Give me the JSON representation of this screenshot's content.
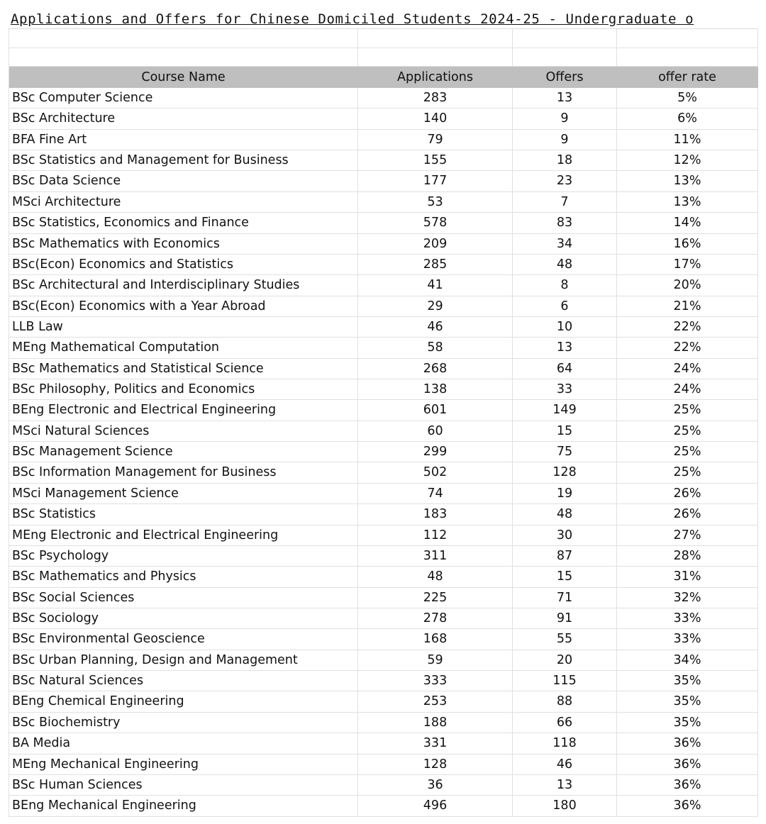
{
  "title": "Applications and Offers for Chinese Domiciled Students 2024-25 - Undergraduate o",
  "columns": [
    "Course Name",
    "Applications",
    "Offers",
    "offer rate"
  ],
  "rows": [
    [
      "BSc Computer Science",
      "283",
      "13",
      "5%"
    ],
    [
      "BSc Architecture",
      "140",
      "9",
      "6%"
    ],
    [
      "BFA Fine Art",
      "79",
      "9",
      "11%"
    ],
    [
      "BSc Statistics and Management for Business",
      "155",
      "18",
      "12%"
    ],
    [
      "BSc Data Science",
      "177",
      "23",
      "13%"
    ],
    [
      "MSci Architecture",
      "53",
      "7",
      "13%"
    ],
    [
      "BSc Statistics, Economics and Finance",
      "578",
      "83",
      "14%"
    ],
    [
      "BSc Mathematics with Economics",
      "209",
      "34",
      "16%"
    ],
    [
      "BSc(Econ) Economics and Statistics",
      "285",
      "48",
      "17%"
    ],
    [
      "BSc Architectural and Interdisciplinary Studies",
      "41",
      "8",
      "20%"
    ],
    [
      "BSc(Econ) Economics with a Year Abroad",
      "29",
      "6",
      "21%"
    ],
    [
      "LLB Law",
      "46",
      "10",
      "22%"
    ],
    [
      "MEng Mathematical Computation",
      "58",
      "13",
      "22%"
    ],
    [
      "BSc Mathematics and Statistical Science",
      "268",
      "64",
      "24%"
    ],
    [
      "BSc Philosophy, Politics and Economics",
      "138",
      "33",
      "24%"
    ],
    [
      "BEng Electronic and Electrical Engineering",
      "601",
      "149",
      "25%"
    ],
    [
      "MSci Natural Sciences",
      "60",
      "15",
      "25%"
    ],
    [
      "BSc Management Science",
      "299",
      "75",
      "25%"
    ],
    [
      "BSc Information Management for Business",
      "502",
      "128",
      "25%"
    ],
    [
      "MSci Management Science",
      "74",
      "19",
      "26%"
    ],
    [
      "BSc Statistics",
      "183",
      "48",
      "26%"
    ],
    [
      "MEng Electronic and Electrical Engineering",
      "112",
      "30",
      "27%"
    ],
    [
      "BSc Psychology",
      "311",
      "87",
      "28%"
    ],
    [
      "BSc Mathematics and Physics",
      "48",
      "15",
      "31%"
    ],
    [
      "BSc Social Sciences",
      "225",
      "71",
      "32%"
    ],
    [
      "BSc Sociology",
      "278",
      "91",
      "33%"
    ],
    [
      "BSc Environmental Geoscience",
      "168",
      "55",
      "33%"
    ],
    [
      "BSc Urban Planning, Design and Management",
      "59",
      "20",
      "34%"
    ],
    [
      "BSc Natural Sciences",
      "333",
      "115",
      "35%"
    ],
    [
      "BEng Chemical Engineering",
      "253",
      "88",
      "35%"
    ],
    [
      "BSc Biochemistry",
      "188",
      "66",
      "35%"
    ],
    [
      "BA Media",
      "331",
      "118",
      "36%"
    ],
    [
      "MEng Mechanical Engineering",
      "128",
      "46",
      "36%"
    ],
    [
      "BSc Human Sciences",
      "36",
      "13",
      "36%"
    ],
    [
      "BEng Mechanical Engineering",
      "496",
      "180",
      "36%"
    ]
  ],
  "colors": {
    "header_bg": "#bfbfbf",
    "grid": "#e0e0e0"
  }
}
